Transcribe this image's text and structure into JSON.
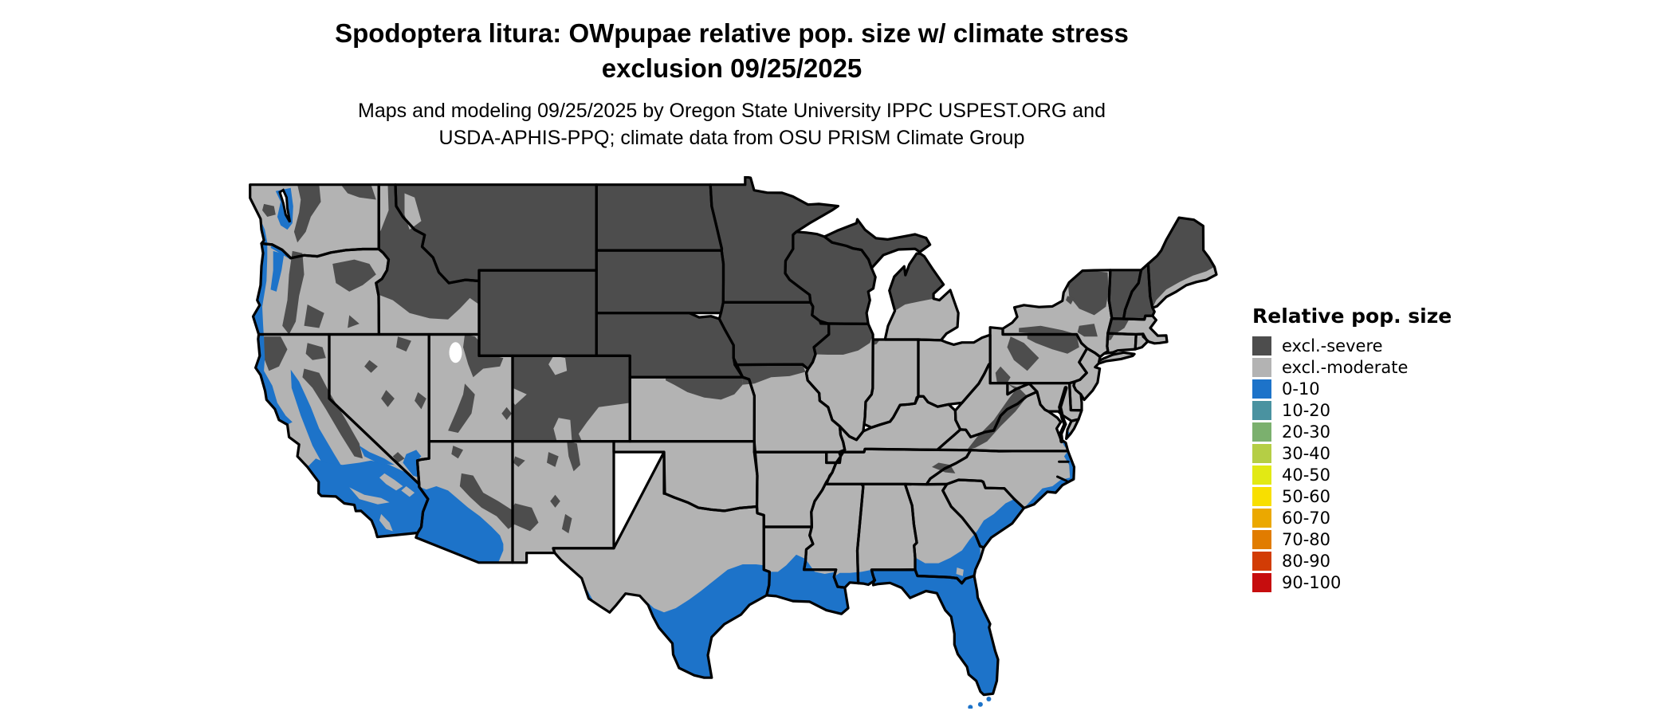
{
  "title": {
    "line1": "Spodoptera litura: OWpupae relative pop. size w/ climate stress",
    "line2": "exclusion 09/25/2025"
  },
  "subtitle": {
    "line1": "Maps and modeling 09/25/2025 by Oregon State University IPPC USPEST.ORG and",
    "line2": "USDA-APHIS-PPQ; climate data from OSU PRISM Climate Group"
  },
  "legend": {
    "title": "Relative pop. size",
    "items": [
      {
        "label": "excl.-severe",
        "color": "#4d4d4d"
      },
      {
        "label": "excl.-moderate",
        "color": "#b3b3b3"
      },
      {
        "label": "0-10",
        "color": "#1d73c9"
      },
      {
        "label": "10-20",
        "color": "#4a92a0"
      },
      {
        "label": "20-30",
        "color": "#7bb06e"
      },
      {
        "label": "30-40",
        "color": "#b5ce45"
      },
      {
        "label": "40-50",
        "color": "#e2e914"
      },
      {
        "label": "50-60",
        "color": "#f8df00"
      },
      {
        "label": "60-70",
        "color": "#eba800"
      },
      {
        "label": "70-80",
        "color": "#e17c00"
      },
      {
        "label": "80-90",
        "color": "#d23c05"
      },
      {
        "label": "90-100",
        "color": "#c60d0e"
      }
    ]
  },
  "map": {
    "region": "contiguous United States",
    "background_color": "#ffffff",
    "border_color": "#000000",
    "water_color": "#000000"
  }
}
